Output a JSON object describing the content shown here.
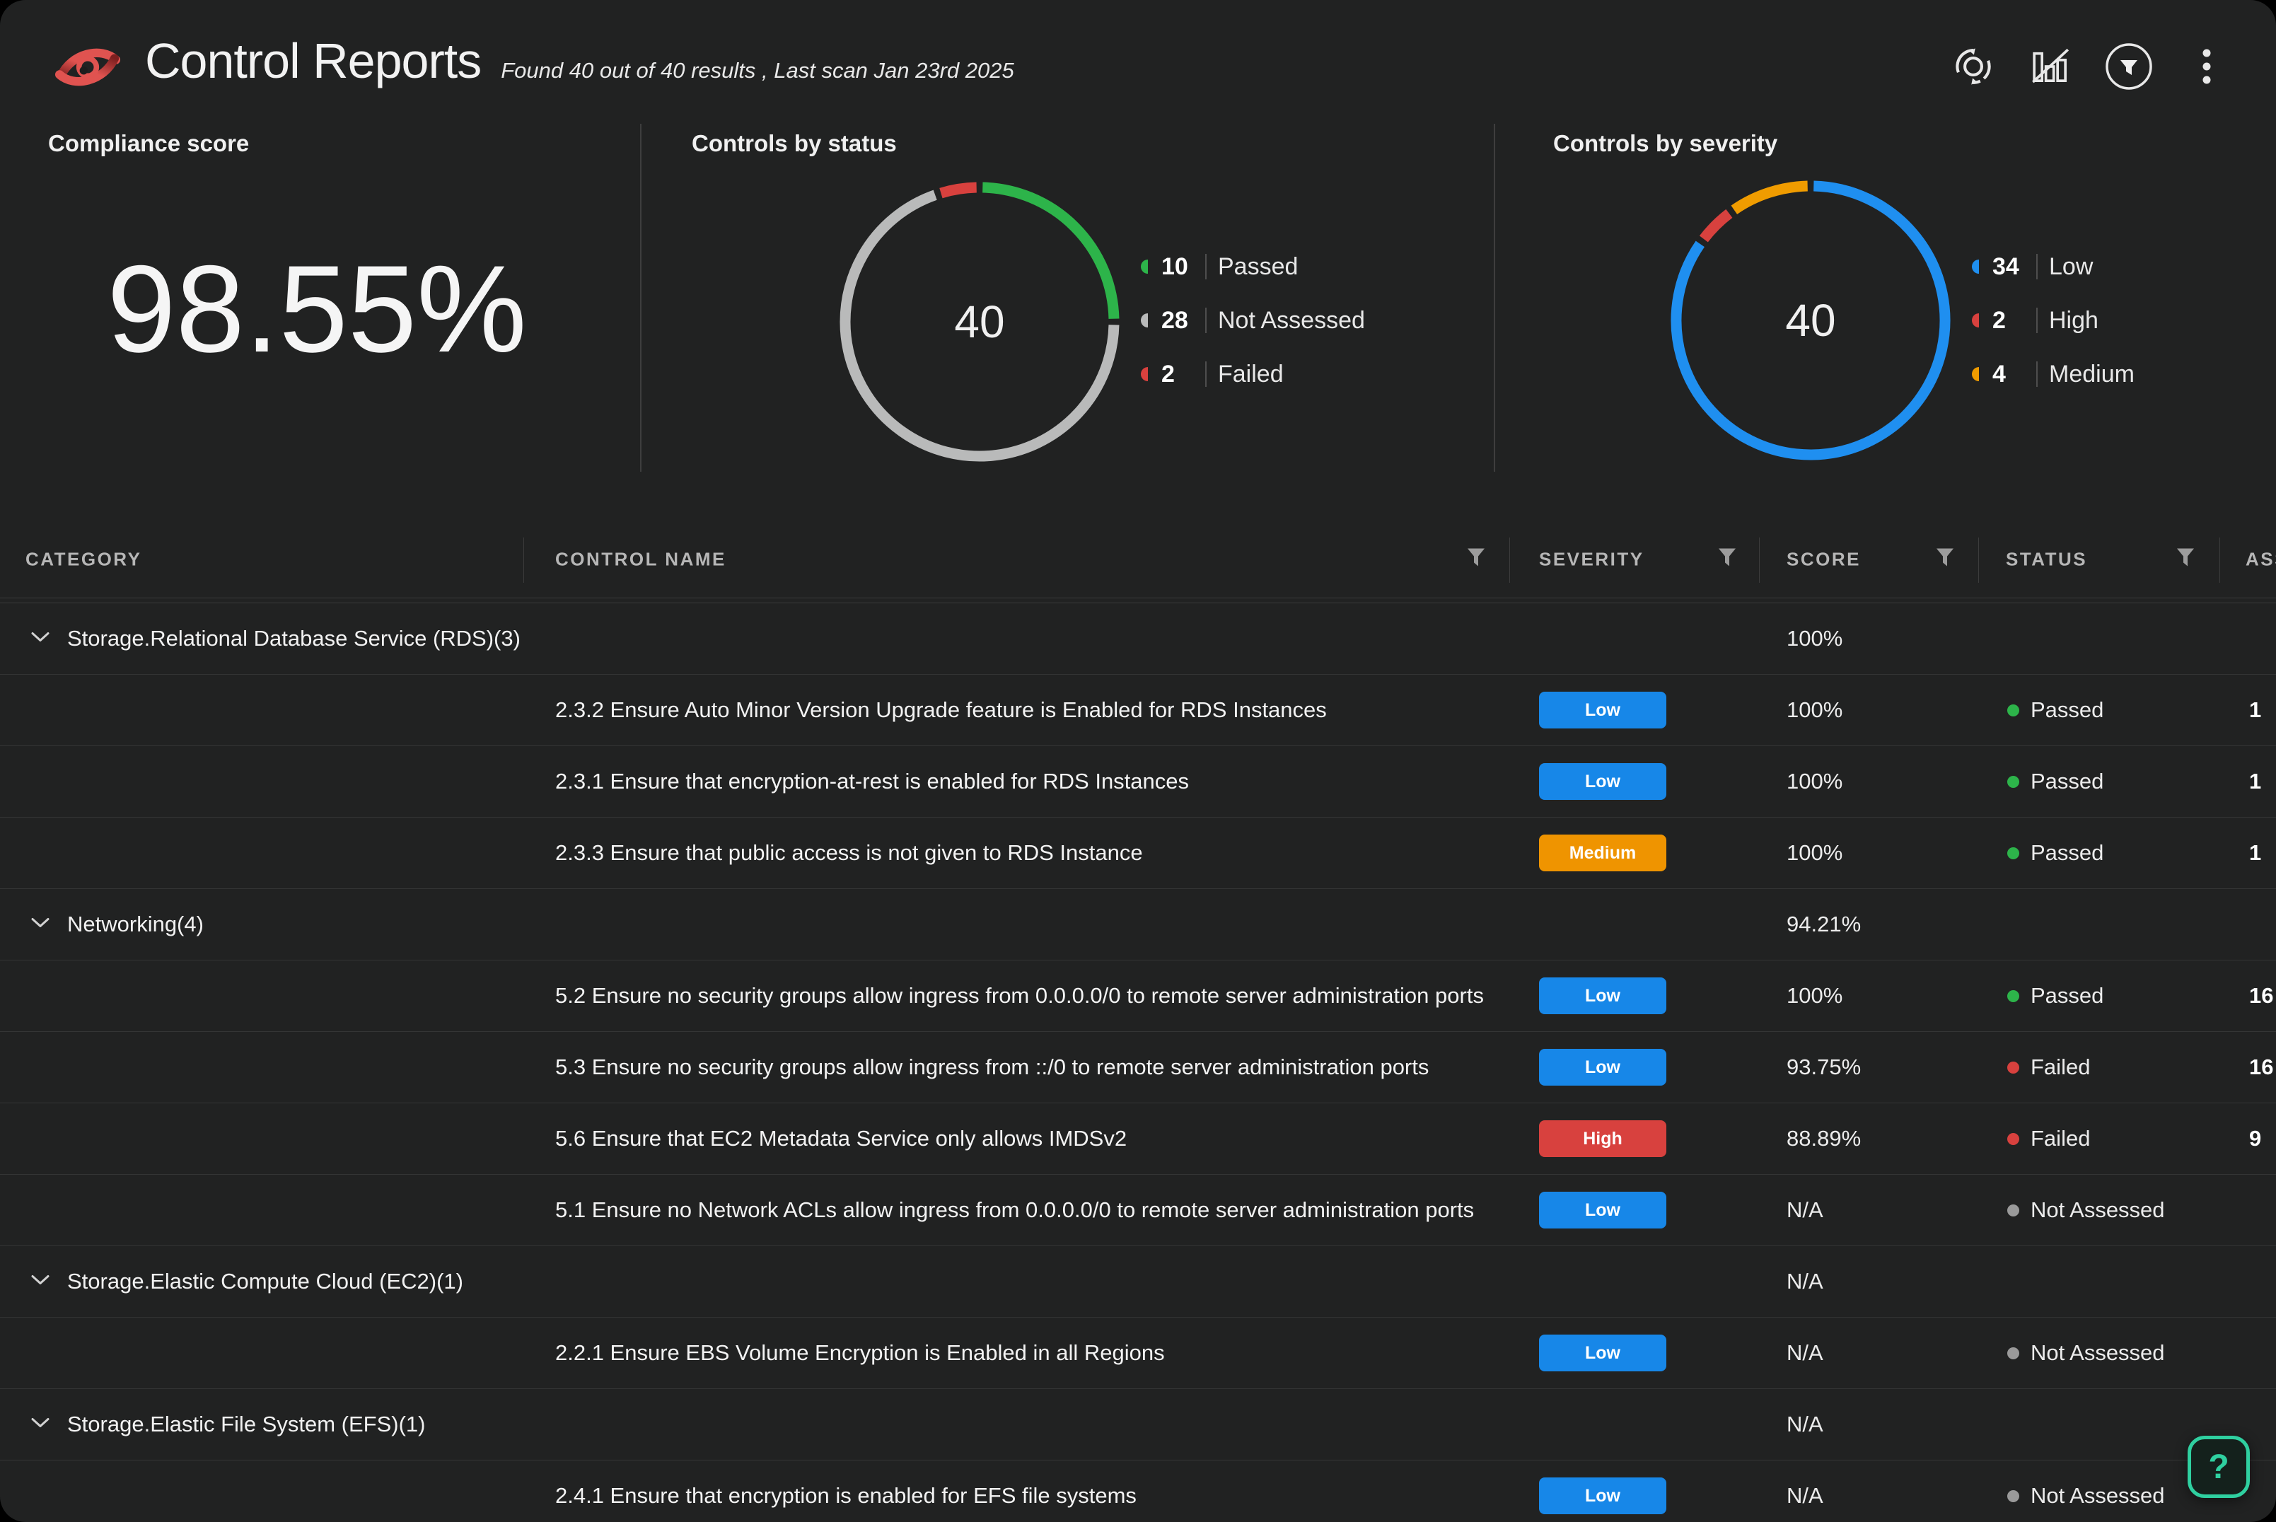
{
  "header": {
    "title": "Control Reports",
    "subtitle": "Found 40 out of 40 results , Last scan Jan 23rd 2025"
  },
  "summary": {
    "compliance": {
      "title": "Compliance score",
      "value": "98.55%"
    },
    "status_title": "Controls by status",
    "severity_title": "Controls by severity"
  },
  "chart_data": [
    {
      "type": "pie",
      "name": "controls-by-status",
      "title": "Controls by status",
      "center_label": "40",
      "legend_position": "right",
      "segments": [
        {
          "label": "Passed",
          "value": 10,
          "color": "#2db44a"
        },
        {
          "label": "Not Assessed",
          "value": 28,
          "color": "#b9baba"
        },
        {
          "label": "Failed",
          "value": 2,
          "color": "#d8413e"
        }
      ]
    },
    {
      "type": "pie",
      "name": "controls-by-severity",
      "title": "Controls by severity",
      "center_label": "40",
      "legend_position": "right",
      "segments": [
        {
          "label": "Low",
          "value": 34,
          "color": "#1f8ff0"
        },
        {
          "label": "High",
          "value": 2,
          "color": "#d8413e"
        },
        {
          "label": "Medium",
          "value": 4,
          "color": "#f09c00"
        }
      ]
    }
  ],
  "severity_colors": {
    "Low": "#1787e8",
    "Medium": "#ef9400",
    "High": "#d8413e"
  },
  "status_colors": {
    "Passed": "#2db44a",
    "Failed": "#d8413e",
    "Not Assessed": "#9a9a9a"
  },
  "table": {
    "columns": [
      "CATEGORY",
      "CONTROL NAME",
      "SEVERITY",
      "SCORE",
      "STATUS",
      "ASSETS"
    ],
    "groups": [
      {
        "name": "Storage.Relational Database Service (RDS)(3)",
        "score": "100%",
        "rows": [
          {
            "name": "2.3.2 Ensure Auto Minor Version Upgrade feature is Enabled for RDS Instances",
            "severity": "Low",
            "score": "100%",
            "status": "Passed",
            "assets": "1"
          },
          {
            "name": "2.3.1 Ensure that encryption-at-rest is enabled for RDS Instances",
            "severity": "Low",
            "score": "100%",
            "status": "Passed",
            "assets": "1"
          },
          {
            "name": "2.3.3 Ensure that public access is not given to RDS Instance",
            "severity": "Medium",
            "score": "100%",
            "status": "Passed",
            "assets": "1"
          }
        ]
      },
      {
        "name": "Networking(4)",
        "score": "94.21%",
        "rows": [
          {
            "name": "5.2 Ensure no security groups allow ingress from 0.0.0.0/0 to remote server administration ports",
            "severity": "Low",
            "score": "100%",
            "status": "Passed",
            "assets": "16"
          },
          {
            "name": "5.3 Ensure no security groups allow ingress from ::/0 to remote server administration ports",
            "severity": "Low",
            "score": "93.75%",
            "status": "Failed",
            "assets": "16"
          },
          {
            "name": "5.6 Ensure that EC2 Metadata Service only allows IMDSv2",
            "severity": "High",
            "score": "88.89%",
            "status": "Failed",
            "assets": "9"
          },
          {
            "name": "5.1 Ensure no Network ACLs allow ingress from 0.0.0.0/0 to remote server administration ports",
            "severity": "Low",
            "score": "N/A",
            "status": "Not Assessed",
            "assets": ""
          }
        ]
      },
      {
        "name": "Storage.Elastic Compute Cloud (EC2)(1)",
        "score": "N/A",
        "rows": [
          {
            "name": "2.2.1 Ensure EBS Volume Encryption is Enabled in all Regions",
            "severity": "Low",
            "score": "N/A",
            "status": "Not Assessed",
            "assets": ""
          }
        ]
      },
      {
        "name": "Storage.Elastic File System (EFS)(1)",
        "score": "N/A",
        "rows": [
          {
            "name": "2.4.1 Ensure that encryption is enabled for EFS file systems",
            "severity": "Low",
            "score": "N/A",
            "status": "Not Assessed",
            "assets": ""
          }
        ]
      }
    ]
  },
  "help": {
    "label": "?"
  }
}
